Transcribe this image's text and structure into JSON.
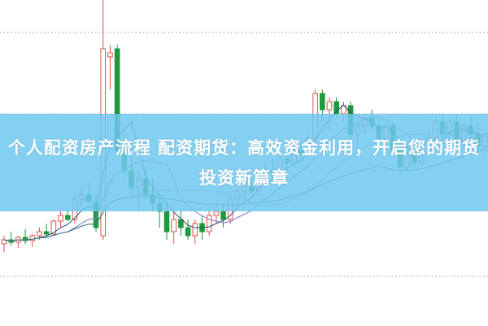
{
  "overlay": {
    "title": "个人配资房产流程 配资期货：高效资金利用，开启您的期货投资新篇章"
  },
  "colors": {
    "up": "#d9534f",
    "down": "#1f9a3a",
    "banner": "#6ec8f0",
    "grid": "#aaaaaa",
    "ma_lines": [
      "#2c4a7a",
      "#7a7ad0",
      "#d99ad9",
      "#2a7a7a"
    ]
  },
  "chart_data": {
    "type": "candlestick",
    "title": "",
    "grid": true,
    "grid_lines": [
      36,
      26,
      16,
      6
    ],
    "ylim": [
      0,
      40
    ],
    "moving_average_periods": [
      5,
      10,
      20,
      40
    ],
    "ohlc": [
      [
        10,
        11,
        9,
        10.5
      ],
      [
        10.5,
        11.5,
        9.8,
        10.2
      ],
      [
        10.2,
        11,
        9.5,
        10.8
      ],
      [
        10.8,
        11.8,
        10,
        10.4
      ],
      [
        10.4,
        11.2,
        9.6,
        11
      ],
      [
        11,
        12,
        10.5,
        11.5
      ],
      [
        11.5,
        12.5,
        10.8,
        11.2
      ],
      [
        11.2,
        13,
        11,
        12.8
      ],
      [
        12.8,
        14,
        12,
        13.5
      ],
      [
        13.5,
        14.5,
        12.8,
        13
      ],
      [
        13,
        16,
        12.5,
        15.5
      ],
      [
        15.5,
        17,
        14.5,
        16
      ],
      [
        16,
        17.5,
        15,
        15.2
      ],
      [
        15.2,
        16,
        11.5,
        12
      ],
      [
        11,
        40,
        10.5,
        34
      ],
      [
        33,
        34.5,
        29,
        33.5
      ],
      [
        34,
        34.5,
        21,
        21.5
      ],
      [
        21.5,
        23,
        18,
        19
      ],
      [
        19,
        21,
        16,
        17
      ],
      [
        17,
        19,
        14,
        18
      ],
      [
        18,
        19.5,
        15.5,
        16
      ],
      [
        16,
        18,
        14,
        15
      ],
      [
        15,
        16,
        12,
        14
      ],
      [
        14,
        15,
        10.5,
        11.5
      ],
      [
        11.5,
        14,
        10,
        13
      ],
      [
        13,
        14,
        11,
        12
      ],
      [
        12,
        13,
        10.5,
        11
      ],
      [
        11,
        13,
        10,
        12.5
      ],
      [
        12.5,
        13.5,
        10.5,
        11.5
      ],
      [
        11.5,
        14,
        11,
        13.5
      ],
      [
        13.5,
        15,
        12.5,
        14
      ],
      [
        14,
        15,
        12,
        13
      ],
      [
        13,
        16,
        12.5,
        15.5
      ],
      [
        15.5,
        17,
        14.5,
        16.5
      ],
      [
        16.5,
        18,
        15.5,
        17
      ],
      [
        17,
        18.5,
        16,
        16.5
      ],
      [
        16.5,
        19,
        16,
        18.5
      ],
      [
        18.5,
        20,
        17.5,
        19
      ],
      [
        19,
        20.5,
        18,
        18.5
      ],
      [
        18.5,
        21,
        18,
        20.5
      ],
      [
        20.5,
        21.5,
        19,
        20
      ],
      [
        20,
        22,
        19.5,
        21.5
      ],
      [
        21.5,
        22.5,
        20,
        21
      ],
      [
        21,
        23.5,
        20.5,
        23
      ],
      [
        23,
        29,
        22,
        28.5
      ],
      [
        28.5,
        29,
        25,
        26.5
      ],
      [
        26.5,
        28,
        24,
        27.5
      ],
      [
        27.5,
        28,
        25.5,
        26
      ],
      [
        26,
        27.5,
        25,
        27
      ],
      [
        27,
        27.5,
        23,
        23.5
      ],
      [
        23.5,
        25,
        22,
        24.5
      ],
      [
        24.5,
        26,
        23.5,
        25.5
      ],
      [
        25.5,
        26.5,
        24,
        24.5
      ],
      [
        24.5,
        25.5,
        22,
        23
      ],
      [
        23,
        25,
        21.5,
        24.5
      ],
      [
        24.5,
        25,
        21,
        21.5
      ],
      [
        21.5,
        23,
        18.5,
        19.5
      ],
      [
        19.5,
        21.5,
        19,
        21
      ],
      [
        21,
        22,
        19.5,
        20
      ],
      [
        20,
        23,
        19.5,
        22.5
      ],
      [
        22.5,
        24,
        21.5,
        23
      ],
      [
        23,
        25.5,
        22,
        25
      ],
      [
        25,
        26,
        23,
        23.5
      ],
      [
        23.5,
        25.5,
        22.5,
        25
      ],
      [
        25,
        26,
        22,
        22.5
      ],
      [
        22.5,
        25,
        22,
        24.5
      ],
      [
        24.5,
        26,
        23,
        23.5
      ],
      [
        23.5,
        25,
        21.5,
        22
      ],
      [
        22,
        24,
        21,
        23.5
      ]
    ]
  }
}
